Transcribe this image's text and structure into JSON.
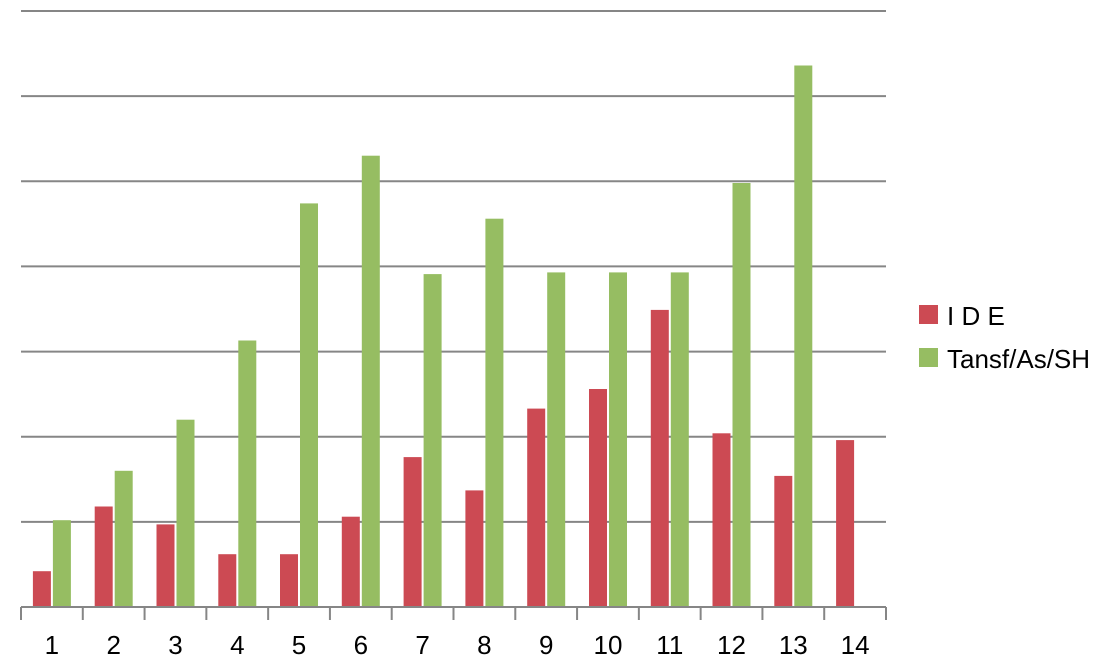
{
  "chart_data": {
    "type": "bar",
    "categories": [
      "1",
      "2",
      "3",
      "4",
      "5",
      "6",
      "7",
      "8",
      "9",
      "10",
      "11",
      "12",
      "13",
      "14"
    ],
    "series": [
      {
        "name": "I D E",
        "color": "#cc4a53",
        "values": [
          0.42,
          1.18,
          0.97,
          0.62,
          0.62,
          1.06,
          1.76,
          1.37,
          2.33,
          2.56,
          3.49,
          2.04,
          1.54,
          1.96
        ]
      },
      {
        "name": "Tansf/As/SH",
        "color": "#96bd62",
        "values": [
          1.02,
          1.6,
          2.2,
          3.13,
          4.74,
          5.3,
          3.91,
          4.56,
          3.93,
          3.93,
          3.93,
          4.98,
          6.36,
          null
        ]
      }
    ],
    "ylim": [
      0,
      7
    ],
    "grid": true,
    "legend_position": "right"
  }
}
